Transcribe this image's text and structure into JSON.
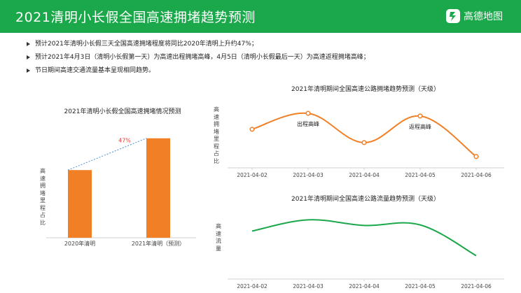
{
  "header": {
    "title": "2021清明小长假全国高速拥堵趋势预测",
    "logo_text": "高德地图",
    "background": "#1aa84a"
  },
  "bullets": [
    "预计2021年清明小长假三天全国高速拥堵程度将同比2020年清明上升约47%；",
    "预计2021年4月3日（清明小长假第一天）为高速出程拥堵高峰，4月5日（清明小长假最后一天）为高速返程拥堵高峰；",
    "节日期间高速交通流量基本呈现相同趋势。"
  ],
  "chart_data": [
    {
      "type": "bar",
      "title": "2021年清明小长假全国高速拥堵情况预测",
      "ylabel": "高速拥堵里程占比",
      "categories": [
        "2020年清明",
        "2021年清明（预测）"
      ],
      "values": [
        100,
        147
      ],
      "ylim": [
        0,
        155
      ],
      "annotation": "47%",
      "bar_color": "#f07f25",
      "annotation_color": "#e03c31"
    },
    {
      "type": "line",
      "title": "2021年清明期间全国高速公路拥堵趋势预测（天级）",
      "ylabel": "高速拥堵里程占比",
      "x": [
        "2021-04-02",
        "2021-04-03",
        "2021-04-04",
        "2021-04-05",
        "2021-04-06"
      ],
      "values": [
        0.58,
        0.82,
        0.38,
        0.78,
        0.17
      ],
      "ylim": [
        0,
        1
      ],
      "annotations": [
        {
          "x": "2021-04-03",
          "text": "出程高峰"
        },
        {
          "x": "2021-04-05",
          "text": "返程高峰"
        }
      ],
      "line_color": "#f07f25"
    },
    {
      "type": "line",
      "title": "2021年清明期间全国高速公路流量趋势预测（天级）",
      "ylabel": "高速流量",
      "x": [
        "2021-04-02",
        "2021-04-03",
        "2021-04-04",
        "2021-04-05",
        "2021-04-06"
      ],
      "values": [
        0.62,
        0.82,
        0.72,
        0.73,
        0.18
      ],
      "ylim": [
        0,
        1
      ],
      "line_color": "#1aa84a"
    }
  ]
}
